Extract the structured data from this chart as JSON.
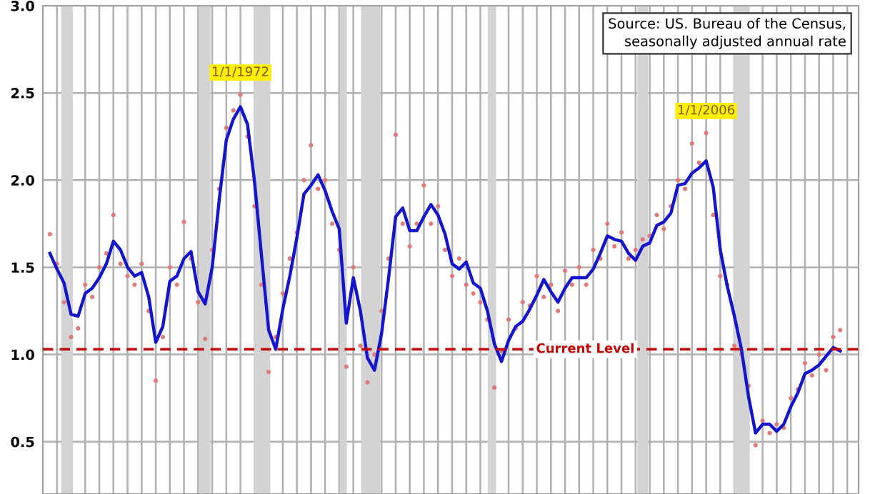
{
  "chart_data": {
    "type": "line",
    "categories": [
      null,
      null,
      null,
      null,
      null,
      null,
      null,
      null,
      null,
      null,
      null,
      null,
      null,
      null,
      null,
      null,
      null,
      null,
      null,
      null,
      null,
      null,
      null,
      null,
      null,
      null,
      null,
      null,
      null,
      null,
      null,
      null,
      null,
      null,
      null,
      null,
      null,
      null,
      null,
      null,
      null,
      null,
      null,
      null,
      null,
      null,
      null,
      null,
      null,
      null,
      null,
      null,
      null,
      null,
      null,
      null,
      null,
      null,
      null,
      null,
      null,
      null,
      null,
      null,
      null,
      null,
      null,
      null,
      null,
      null,
      null,
      null,
      null,
      null,
      null,
      null,
      null,
      null,
      null,
      null,
      null,
      null,
      null,
      null,
      null,
      null,
      null,
      null,
      null,
      null,
      null,
      null,
      null,
      null,
      null,
      null,
      null,
      null,
      null,
      null,
      null,
      null,
      null,
      null,
      null,
      null,
      null,
      null,
      null,
      null,
      null,
      null,
      null
    ],
    "ylim": [
      0.2,
      3.0
    ],
    "yticks": [
      {
        "value": 0.5,
        "label": "0.5"
      },
      {
        "value": 1.0,
        "label": "1.0"
      },
      {
        "value": 1.5,
        "label": "1.5"
      },
      {
        "value": 2.0,
        "label": "2.0"
      },
      {
        "value": 2.5,
        "label": "2.5"
      },
      {
        "value": 3.0,
        "label": "3.0"
      }
    ],
    "tick_labels": "y",
    "grid": true,
    "ref_lines": [
      {
        "axis": "y",
        "value": 1.03,
        "label": "Current Level",
        "color": "#c00000",
        "line_style": "dashed"
      }
    ],
    "annotations": [
      "Source: US. Bureau of the Census,\nseasonally adjusted annual rate",
      {
        "text": "1/1/1972",
        "y": 2.49
      },
      {
        "text": "1/1/2006",
        "y": 2.27
      }
    ],
    "series": [
      {
        "type": "scatter",
        "color": "#e07b7b",
        "values": [
          1.69,
          1.52,
          1.3,
          1.1,
          1.15,
          1.4,
          1.33,
          1.5,
          1.58,
          1.8,
          1.52,
          1.45,
          1.4,
          1.52,
          1.25,
          0.85,
          1.1,
          1.5,
          1.4,
          1.76,
          1.55,
          1.3,
          1.09,
          1.6,
          1.95,
          2.3,
          2.4,
          2.49,
          2.25,
          1.85,
          1.4,
          0.9,
          1.1,
          1.35,
          1.55,
          1.7,
          2.0,
          2.2,
          1.95,
          2.0,
          1.75,
          1.6,
          0.93,
          1.5,
          1.05,
          0.84,
          1.0,
          1.25,
          1.55,
          2.26,
          1.75,
          1.62,
          1.75,
          1.97,
          1.75,
          1.85,
          1.6,
          1.45,
          1.55,
          1.4,
          1.35,
          1.3,
          1.2,
          0.81,
          1.02,
          1.2,
          1.15,
          1.3,
          1.28,
          1.45,
          1.33,
          1.4,
          1.25,
          1.48,
          1.4,
          1.5,
          1.4,
          1.6,
          1.55,
          1.75,
          1.62,
          1.7,
          1.55,
          1.6,
          1.66,
          1.68,
          1.8,
          1.72,
          1.85,
          2.0,
          1.95,
          2.21,
          2.1,
          2.27,
          1.8,
          1.45,
          1.4,
          1.05,
          1.0,
          0.82,
          0.48,
          0.62,
          0.55,
          0.6,
          0.58,
          0.75,
          0.8,
          0.95,
          0.88,
          1.0,
          0.91,
          1.1,
          1.14
        ]
      },
      {
        "color": "#1515cc",
        "values": [
          1.58,
          1.49,
          1.41,
          1.23,
          1.22,
          1.35,
          1.38,
          1.44,
          1.52,
          1.65,
          1.6,
          1.5,
          1.45,
          1.47,
          1.33,
          1.07,
          1.16,
          1.42,
          1.45,
          1.55,
          1.59,
          1.36,
          1.29,
          1.5,
          1.89,
          2.23,
          2.35,
          2.42,
          2.32,
          1.99,
          1.56,
          1.14,
          1.03,
          1.26,
          1.45,
          1.67,
          1.92,
          1.97,
          2.03,
          1.94,
          1.82,
          1.72,
          1.18,
          1.44,
          1.25,
          0.98,
          0.91,
          1.12,
          1.44,
          1.79,
          1.84,
          1.71,
          1.71,
          1.79,
          1.86,
          1.8,
          1.69,
          1.52,
          1.49,
          1.53,
          1.41,
          1.38,
          1.25,
          1.06,
          0.96,
          1.08,
          1.16,
          1.19,
          1.26,
          1.34,
          1.43,
          1.36,
          1.3,
          1.38,
          1.44,
          1.44,
          1.44,
          1.49,
          1.58,
          1.68,
          1.66,
          1.65,
          1.58,
          1.54,
          1.62,
          1.64,
          1.74,
          1.76,
          1.81,
          1.97,
          1.98,
          2.04,
          2.07,
          2.11,
          1.96,
          1.6,
          1.39,
          1.22,
          1.03,
          0.76,
          0.55,
          0.6,
          0.6,
          0.56,
          0.6,
          0.7,
          0.78,
          0.89,
          0.91,
          0.94,
          0.99,
          1.04,
          1.02
        ]
      }
    ]
  }
}
